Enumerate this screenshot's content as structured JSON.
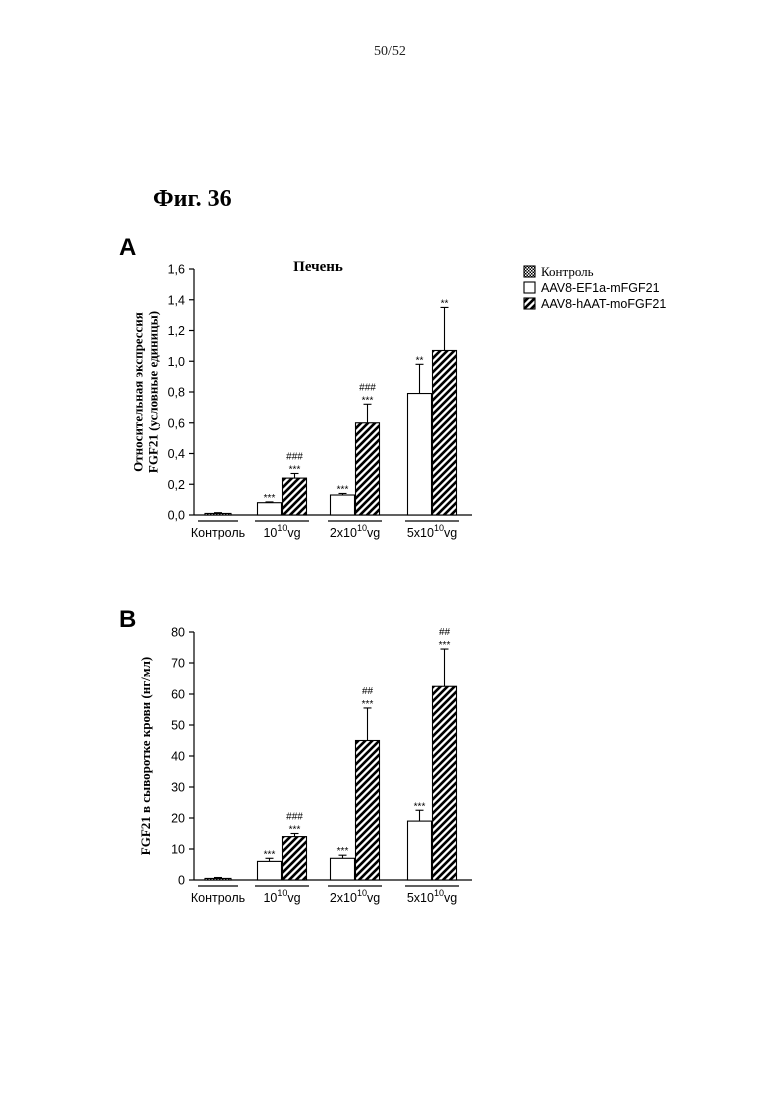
{
  "page_number": "50/52",
  "figure_title": "Фиг. 36",
  "legend": {
    "items": [
      {
        "label": "Контроль",
        "pattern": "dots"
      },
      {
        "label": "AAV8-EF1a-mFGF21",
        "pattern": "none"
      },
      {
        "label": "AAV8-hAAT-moFGF21",
        "pattern": "hatch"
      }
    ]
  },
  "chart_data": [
    {
      "type": "bar",
      "panel": "A",
      "title": "Печень",
      "ylabel": [
        "Относительная экспрессия",
        "FGF21 (условные единицы)"
      ],
      "ylim": [
        0,
        1.6
      ],
      "yticks": [
        "0,0",
        "0,2",
        "0,4",
        "0,6",
        "0,8",
        "1,0",
        "1,2",
        "1,4",
        "1,6"
      ],
      "categories": [
        {
          "label": "Контроль",
          "base": "",
          "exp": ""
        },
        {
          "label": "",
          "base": "10",
          "exp": "10",
          "suffix": "vg"
        },
        {
          "label": "",
          "base": "2x10",
          "exp": "10",
          "suffix": "vg"
        },
        {
          "label": "",
          "base": "5x10",
          "exp": "10",
          "suffix": "vg"
        }
      ],
      "bars": [
        {
          "group": 0,
          "series": "Контроль",
          "value": 0.01,
          "error": 0.005,
          "sig": []
        },
        {
          "group": 1,
          "series": "AAV8-EF1a-mFGF21",
          "value": 0.08,
          "error": 0.005,
          "sig": [
            "***"
          ]
        },
        {
          "group": 1,
          "series": "AAV8-hAAT-moFGF21",
          "value": 0.24,
          "error": 0.03,
          "sig": [
            "***",
            "###"
          ]
        },
        {
          "group": 2,
          "series": "AAV8-EF1a-mFGF21",
          "value": 0.13,
          "error": 0.01,
          "sig": [
            "***"
          ]
        },
        {
          "group": 2,
          "series": "AAV8-hAAT-moFGF21",
          "value": 0.6,
          "error": 0.12,
          "sig": [
            "***",
            "###"
          ]
        },
        {
          "group": 3,
          "series": "AAV8-EF1a-mFGF21",
          "value": 0.79,
          "error": 0.19,
          "sig": [
            "**"
          ]
        },
        {
          "group": 3,
          "series": "AAV8-hAAT-moFGF21",
          "value": 1.07,
          "error": 0.28,
          "sig": [
            "**"
          ]
        }
      ]
    },
    {
      "type": "bar",
      "panel": "B",
      "title": "",
      "ylabel": [
        "FGF21 в сыворотке крови (нг/мл)"
      ],
      "ylim": [
        0,
        80
      ],
      "yticks": [
        "0",
        "10",
        "20",
        "30",
        "40",
        "50",
        "60",
        "70",
        "80"
      ],
      "categories": [
        {
          "label": "Контроль",
          "base": "",
          "exp": ""
        },
        {
          "label": "",
          "base": "10",
          "exp": "10",
          "suffix": "vg"
        },
        {
          "label": "",
          "base": "2x10",
          "exp": "10",
          "suffix": "vg"
        },
        {
          "label": "",
          "base": "5x10",
          "exp": "10",
          "suffix": "vg"
        }
      ],
      "bars": [
        {
          "group": 0,
          "series": "Контроль",
          "value": 0.5,
          "error": 0.3,
          "sig": []
        },
        {
          "group": 1,
          "series": "AAV8-EF1a-mFGF21",
          "value": 6,
          "error": 1,
          "sig": [
            "***"
          ]
        },
        {
          "group": 1,
          "series": "AAV8-hAAT-moFGF21",
          "value": 14,
          "error": 1,
          "sig": [
            "***",
            "###"
          ]
        },
        {
          "group": 2,
          "series": "AAV8-EF1a-mFGF21",
          "value": 7,
          "error": 1,
          "sig": [
            "***"
          ]
        },
        {
          "group": 2,
          "series": "AAV8-hAAT-moFGF21",
          "value": 45,
          "error": 10.5,
          "sig": [
            "***",
            "##"
          ]
        },
        {
          "group": 3,
          "series": "AAV8-EF1a-mFGF21",
          "value": 19,
          "error": 3.5,
          "sig": [
            "***"
          ]
        },
        {
          "group": 3,
          "series": "AAV8-hAAT-moFGF21",
          "value": 62.5,
          "error": 12,
          "sig": [
            "***",
            "##"
          ]
        }
      ]
    }
  ]
}
